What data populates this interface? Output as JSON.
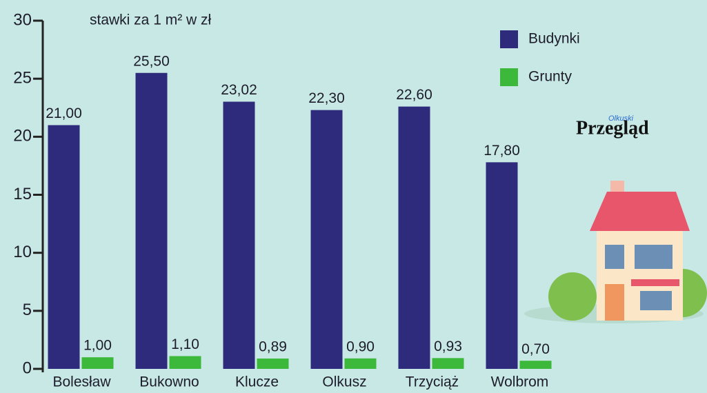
{
  "chart_data": {
    "type": "bar",
    "subtitle": "stawki za 1 m² w zł",
    "brand_small": "Olkuski",
    "brand": "Przegląd",
    "categories": [
      "Bolesław",
      "Bukowno",
      "Klucze",
      "Olkusz",
      "Trzyciąż",
      "Wolbrom"
    ],
    "series": [
      {
        "name": "Budynki",
        "color": "#2e2a7c",
        "values": [
          21,
          25.5,
          23.02,
          22.3,
          22.6,
          17.8
        ],
        "value_labels": [
          "21,00",
          "25,50",
          "23,02",
          "22,30",
          "22,60",
          "17,80"
        ]
      },
      {
        "name": "Grunty",
        "color": "#3cb93a",
        "values": [
          1,
          1.1,
          0.89,
          0.9,
          0.93,
          0.7
        ],
        "value_labels": [
          "1,00",
          "1,10",
          "0,89",
          "0,90",
          "0,93",
          "0,70"
        ]
      }
    ],
    "ylim": [
      0,
      30
    ],
    "yticks": [
      0,
      5,
      10,
      15,
      20,
      25,
      30
    ],
    "legend": "top-right",
    "grid": false
  }
}
